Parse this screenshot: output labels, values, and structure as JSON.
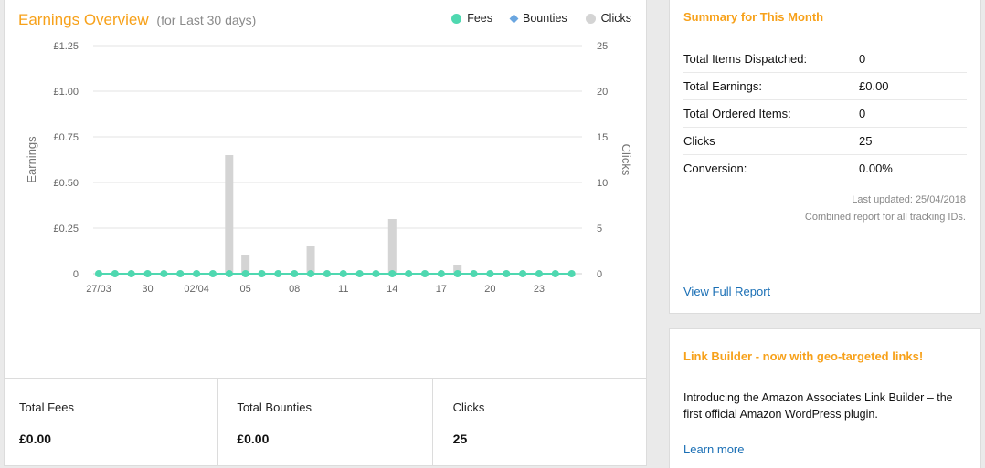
{
  "earnings": {
    "title": "Earnings Overview",
    "subtitle": "(for Last 30 days)",
    "legend": [
      {
        "label": "Fees",
        "color": "#4fd8b0",
        "shape": "dot"
      },
      {
        "label": "Bounties",
        "color": "#6aa6e0",
        "shape": "diamond"
      },
      {
        "label": "Clicks",
        "color": "#d4d4d4",
        "shape": "dot"
      }
    ]
  },
  "chart_data": {
    "type": "bar",
    "title": "Earnings Overview",
    "ylabel": "Earnings",
    "y2label": "Clicks",
    "ylim": [
      0,
      1.25
    ],
    "y2lim": [
      0,
      25
    ],
    "y_ticks": [
      "0",
      "£0.25",
      "£0.50",
      "£0.75",
      "£1.00",
      "£1.25"
    ],
    "y2_ticks": [
      "0",
      "5",
      "10",
      "15",
      "20",
      "25"
    ],
    "x_tick_labels": [
      {
        "index": 0,
        "label": "27/03"
      },
      {
        "index": 3,
        "label": "30"
      },
      {
        "index": 6,
        "label": "02/04"
      },
      {
        "index": 9,
        "label": "05"
      },
      {
        "index": 12,
        "label": "08"
      },
      {
        "index": 15,
        "label": "11"
      },
      {
        "index": 18,
        "label": "14"
      },
      {
        "index": 21,
        "label": "17"
      },
      {
        "index": 24,
        "label": "20"
      },
      {
        "index": 27,
        "label": "23"
      }
    ],
    "categories": [
      "27/03",
      "28/03",
      "29/03",
      "30/03",
      "31/03",
      "01/04",
      "02/04",
      "03/04",
      "04/04",
      "05/04",
      "06/04",
      "07/04",
      "08/04",
      "09/04",
      "10/04",
      "11/04",
      "12/04",
      "13/04",
      "14/04",
      "15/04",
      "16/04",
      "17/04",
      "18/04",
      "19/04",
      "20/04",
      "21/04",
      "22/04",
      "23/04",
      "24/04",
      "25/04"
    ],
    "series": [
      {
        "name": "Fees",
        "values": [
          0,
          0,
          0,
          0,
          0,
          0,
          0,
          0,
          0,
          0,
          0,
          0,
          0,
          0,
          0,
          0,
          0,
          0,
          0,
          0,
          0,
          0,
          0,
          0,
          0,
          0,
          0,
          0,
          0,
          0
        ]
      },
      {
        "name": "Bounties",
        "values": [
          0,
          0,
          0,
          0,
          0,
          0,
          0,
          0,
          0,
          0,
          0,
          0,
          0,
          0,
          0,
          0,
          0,
          0,
          0,
          0,
          0,
          0,
          0,
          0,
          0,
          0,
          0,
          0,
          0,
          0
        ]
      },
      {
        "name": "Clicks",
        "values": [
          0,
          0,
          0,
          0,
          0,
          0,
          0,
          0,
          13,
          2,
          0,
          0,
          0,
          3,
          0,
          0,
          0,
          0,
          6,
          0,
          0,
          0,
          1,
          0,
          0,
          0,
          0,
          0,
          0,
          0
        ]
      }
    ],
    "grid": true,
    "legend_position": "top-right"
  },
  "totals": {
    "fees_label": "Total Fees",
    "fees_value": "£0.00",
    "bounties_label": "Total Bounties",
    "bounties_value": "£0.00",
    "clicks_label": "Clicks",
    "clicks_value": "25"
  },
  "summary": {
    "title": "Summary for This Month",
    "rows": [
      {
        "label": "Total Items Dispatched:",
        "value": "0"
      },
      {
        "label": "Total Earnings:",
        "value": "£0.00"
      },
      {
        "label": "Total Ordered Items:",
        "value": "0"
      },
      {
        "label": "Clicks",
        "value": "25"
      },
      {
        "label": "Conversion:",
        "value": "0.00%"
      }
    ],
    "last_updated": "Last updated: 25/04/2018",
    "combined_note": "Combined report for all tracking IDs.",
    "view_full_report": "View Full Report"
  },
  "link_builder": {
    "title": "Link Builder - now with geo-targeted links!",
    "text": "Introducing the Amazon Associates Link Builder – the first official Amazon WordPress plugin.",
    "learn_more": "Learn more"
  }
}
